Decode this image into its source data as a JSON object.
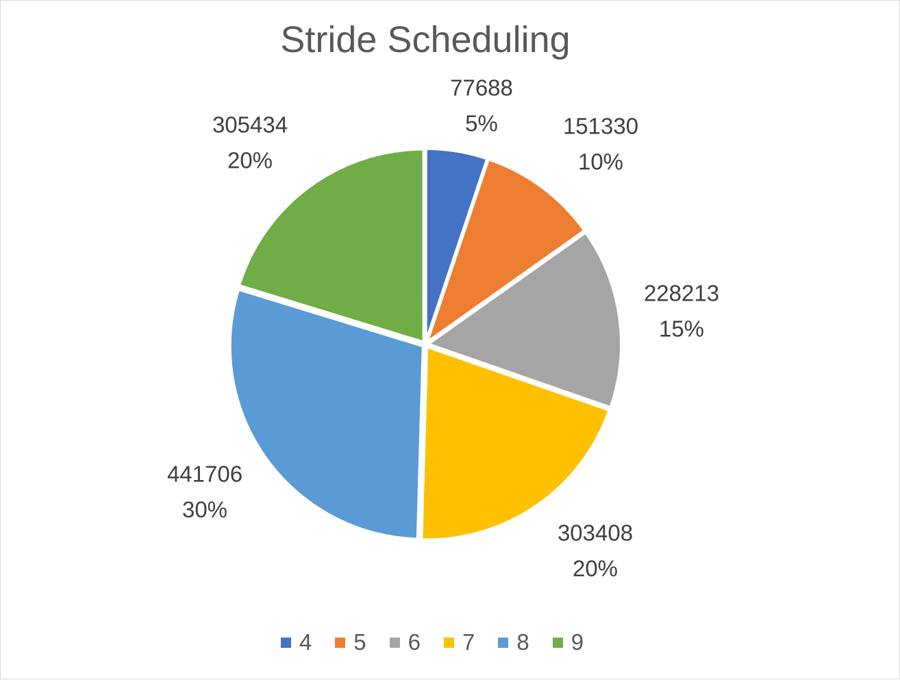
{
  "chart_data": {
    "type": "pie",
    "title": "Stride Scheduling",
    "categories": [
      "4",
      "5",
      "6",
      "7",
      "8",
      "9"
    ],
    "values": [
      77688,
      151330,
      228213,
      303408,
      441706,
      305434
    ],
    "percent_labels": [
      "5%",
      "10%",
      "15%",
      "20%",
      "30%",
      "20%"
    ],
    "value_labels": [
      "77688",
      "151330",
      "228213",
      "303408",
      "441706",
      "305434"
    ],
    "colors": [
      "#4472C4",
      "#ED7D31",
      "#A5A5A5",
      "#FFC000",
      "#5B9BD5",
      "#70AD47"
    ],
    "legend": "bottom",
    "start_angle_deg": 0,
    "direction": "clockwise"
  }
}
